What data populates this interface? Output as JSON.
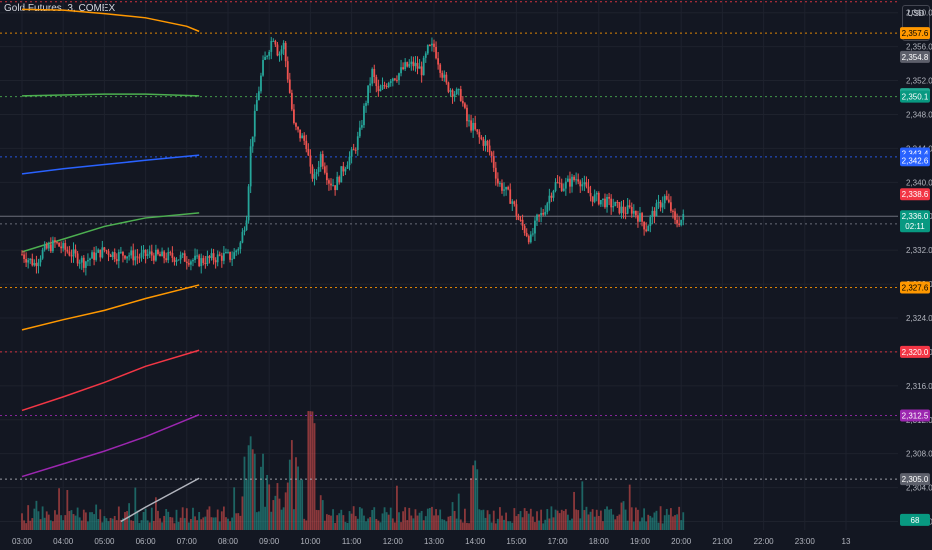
{
  "header": {
    "symbol_title": "Gold Futures, 3, COMEX",
    "currency": "USD",
    "scale_mode": "apoz"
  },
  "colors": {
    "background": "#131722",
    "grid": "#1e222d",
    "up": "#26a69a",
    "down": "#ef5350",
    "axis_text": "#b2b5be"
  },
  "chart_data": {
    "type": "candlestick",
    "x_ticks": [
      "03:00",
      "04:00",
      "05:00",
      "06:00",
      "07:00",
      "08:00",
      "09:00",
      "10:00",
      "11:00",
      "12:00",
      "13:00",
      "14:00",
      "15:00",
      "17:00",
      "18:00",
      "19:00",
      "20:00",
      "21:00",
      "22:00",
      "23:00",
      "13"
    ],
    "y_ticks": [
      2300.0,
      2304.0,
      2308.0,
      2312.0,
      2316.0,
      2320.0,
      2324.0,
      2328.0,
      2332.0,
      2336.0,
      2340.0,
      2344.0,
      2348.0,
      2352.0,
      2356.0,
      2360.0
    ],
    "ylim": [
      2299.0,
      2361.5
    ],
    "last_price": {
      "value": "2,336.0",
      "countdown": "02:11"
    },
    "price_markers": [
      {
        "label": "2,357.6",
        "value": 2357.6,
        "color": "#ff9800",
        "text_color": "#000000"
      },
      {
        "label": "2,354.8",
        "value": 2354.8,
        "color": "#5d606b",
        "text_color": "#ffffff"
      },
      {
        "label": "2,350.4",
        "value": 2350.4,
        "color": "#22ab94",
        "text_color": "#ffffff"
      },
      {
        "label": "2,350.1",
        "value": 2350.1,
        "color": "#089981",
        "text_color": "#ffffff"
      },
      {
        "label": "2,343.4",
        "value": 2343.4,
        "color": "#2962ff",
        "text_color": "#ffffff"
      },
      {
        "label": "2,342.6",
        "value": 2342.6,
        "color": "#2962ff",
        "text_color": "#ffffff"
      },
      {
        "label": "2,338.6",
        "value": 2338.6,
        "color": "#f23645",
        "text_color": "#ffffff"
      },
      {
        "label": "2,335.1",
        "value": 2335.1,
        "color": "#089981",
        "text_color": "#ffffff"
      },
      {
        "label": "2,327.6",
        "value": 2327.6,
        "color": "#ff9800",
        "text_color": "#000000"
      },
      {
        "label": "2,320.0",
        "value": 2320.0,
        "color": "#f23645",
        "text_color": "#ffffff"
      },
      {
        "label": "2,312.5",
        "value": 2312.5,
        "color": "#9c27b0",
        "text_color": "#ffffff"
      },
      {
        "label": "2,305.0",
        "value": 2305.0,
        "color": "#5d606b",
        "text_color": "#ffffff"
      },
      {
        "label": "68",
        "value": 2300.2,
        "color": "#089981",
        "text_color": "#ffffff"
      }
    ],
    "horizontal_levels": [
      {
        "value": 2357.6,
        "color": "#ff9800",
        "style": "dotted"
      },
      {
        "value": 2350.1,
        "color": "#4caf50",
        "style": "dotted"
      },
      {
        "value": 2343.0,
        "color": "#2962ff",
        "style": "dotted"
      },
      {
        "value": 2336.0,
        "color": "#787b86",
        "style": "solid"
      },
      {
        "value": 2335.1,
        "color": "#787b86",
        "style": "dotted"
      },
      {
        "value": 2327.6,
        "color": "#ff9800",
        "style": "dotted"
      },
      {
        "value": 2320.0,
        "color": "#f23645",
        "style": "dotted"
      },
      {
        "value": 2312.5,
        "color": "#9c27b0",
        "style": "dotted"
      },
      {
        "value": 2305.0,
        "color": "#b2b5be",
        "style": "dotted"
      },
      {
        "value": 2361.3,
        "color": "#f23645",
        "style": "dotted"
      }
    ],
    "series_lines": [
      {
        "color": "#ff9800",
        "points": [
          [
            0.0,
            2360.4
          ],
          [
            1.0,
            2360.3
          ],
          [
            2.0,
            2359.9
          ],
          [
            3.0,
            2359.4
          ],
          [
            4.0,
            2358.4
          ],
          [
            4.3,
            2357.8
          ]
        ]
      },
      {
        "color": "#4caf50",
        "points": [
          [
            0.0,
            2350.2
          ],
          [
            1.0,
            2350.3
          ],
          [
            2.0,
            2350.4
          ],
          [
            3.0,
            2350.4
          ],
          [
            4.3,
            2350.2
          ]
        ]
      },
      {
        "color": "#2962ff",
        "points": [
          [
            0.0,
            2341.0
          ],
          [
            1.0,
            2341.6
          ],
          [
            2.0,
            2342.1
          ],
          [
            3.0,
            2342.6
          ],
          [
            4.3,
            2343.2
          ]
        ]
      },
      {
        "color": "#4caf50",
        "points": [
          [
            0.0,
            2331.8
          ],
          [
            1.0,
            2333.3
          ],
          [
            2.0,
            2334.8
          ],
          [
            3.0,
            2335.8
          ],
          [
            4.3,
            2336.4
          ]
        ]
      },
      {
        "color": "#ff9800",
        "points": [
          [
            0.0,
            2322.6
          ],
          [
            1.0,
            2323.8
          ],
          [
            2.0,
            2324.9
          ],
          [
            3.0,
            2326.3
          ],
          [
            4.3,
            2327.9
          ]
        ]
      },
      {
        "color": "#f23645",
        "points": [
          [
            0.0,
            2313.1
          ],
          [
            1.0,
            2314.7
          ],
          [
            2.0,
            2316.4
          ],
          [
            3.0,
            2318.3
          ],
          [
            4.3,
            2320.2
          ]
        ]
      },
      {
        "color": "#9c27b0",
        "points": [
          [
            0.0,
            2305.3
          ],
          [
            1.0,
            2306.8
          ],
          [
            2.0,
            2308.3
          ],
          [
            3.0,
            2310.0
          ],
          [
            4.3,
            2312.6
          ]
        ]
      },
      {
        "color": "#b2b5be",
        "points": [
          [
            2.4,
            2300.0
          ],
          [
            3.0,
            2301.7
          ],
          [
            4.3,
            2305.1
          ]
        ]
      }
    ],
    "price_path": [
      [
        0.0,
        2331.5
      ],
      [
        0.3,
        2330.4
      ],
      [
        0.5,
        2331.8
      ],
      [
        0.8,
        2332.8
      ],
      [
        1.0,
        2332.2
      ],
      [
        1.2,
        2331.6
      ],
      [
        1.5,
        2330.6
      ],
      [
        1.7,
        2331.2
      ],
      [
        2.0,
        2332.0
      ],
      [
        2.3,
        2331.4
      ],
      [
        2.5,
        2331.6
      ],
      [
        2.8,
        2331.2
      ],
      [
        3.1,
        2331.5
      ],
      [
        3.4,
        2331.2
      ],
      [
        3.7,
        2331.2
      ],
      [
        4.0,
        2331.0
      ],
      [
        4.3,
        2330.7
      ],
      [
        4.6,
        2331.0
      ],
      [
        4.9,
        2331.3
      ],
      [
        5.1,
        2331.2
      ],
      [
        5.3,
        2332.8
      ],
      [
        5.45,
        2336.2
      ],
      [
        5.55,
        2344.0
      ],
      [
        5.7,
        2349.6
      ],
      [
        5.85,
        2353.8
      ],
      [
        6.0,
        2356.0
      ],
      [
        6.12,
        2357.5
      ],
      [
        6.22,
        2355.0
      ],
      [
        6.35,
        2356.2
      ],
      [
        6.5,
        2350.6
      ],
      [
        6.6,
        2346.6
      ],
      [
        6.75,
        2345.5
      ],
      [
        6.9,
        2344.6
      ],
      [
        7.0,
        2341.2
      ],
      [
        7.1,
        2340.4
      ],
      [
        7.25,
        2343.2
      ],
      [
        7.45,
        2340.2
      ],
      [
        7.6,
        2339.6
      ],
      [
        7.75,
        2341.2
      ],
      [
        7.9,
        2342.6
      ],
      [
        8.05,
        2343.6
      ],
      [
        8.2,
        2345.8
      ],
      [
        8.3,
        2348.6
      ],
      [
        8.5,
        2353.0
      ],
      [
        8.65,
        2350.4
      ],
      [
        8.8,
        2351.4
      ],
      [
        8.95,
        2352.4
      ],
      [
        9.1,
        2352.6
      ],
      [
        9.3,
        2353.6
      ],
      [
        9.5,
        2353.9
      ],
      [
        9.7,
        2353.2
      ],
      [
        9.85,
        2355.6
      ],
      [
        10.0,
        2356.0
      ],
      [
        10.15,
        2353.6
      ],
      [
        10.3,
        2351.4
      ],
      [
        10.5,
        2350.6
      ],
      [
        10.65,
        2350.2
      ],
      [
        10.8,
        2347.2
      ],
      [
        10.95,
        2346.4
      ],
      [
        11.1,
        2345.2
      ],
      [
        11.25,
        2344.6
      ],
      [
        11.4,
        2343.0
      ],
      [
        11.55,
        2340.0
      ],
      [
        11.7,
        2339.2
      ],
      [
        11.9,
        2337.8
      ],
      [
        12.05,
        2335.6
      ],
      [
        12.2,
        2334.4
      ],
      [
        12.35,
        2333.2
      ],
      [
        12.5,
        2335.6
      ],
      [
        12.65,
        2336.4
      ],
      [
        12.8,
        2338.4
      ],
      [
        12.95,
        2339.8
      ],
      [
        13.15,
        2339.6
      ],
      [
        13.35,
        2340.2
      ],
      [
        13.5,
        2340.6
      ],
      [
        13.65,
        2339.4
      ],
      [
        13.8,
        2338.4
      ],
      [
        14.0,
        2338.0
      ],
      [
        14.2,
        2337.6
      ],
      [
        14.4,
        2337.2
      ],
      [
        14.6,
        2336.6
      ],
      [
        14.8,
        2336.8
      ],
      [
        15.0,
        2335.8
      ],
      [
        15.15,
        2334.6
      ],
      [
        15.3,
        2336.2
      ],
      [
        15.45,
        2337.2
      ],
      [
        15.6,
        2338.2
      ],
      [
        15.75,
        2336.8
      ],
      [
        15.85,
        2335.2
      ],
      [
        16.0,
        2335.6
      ],
      [
        16.1,
        2336.0
      ]
    ],
    "price_bounds": {
      "max": 2358.0,
      "min": 2332.0
    },
    "volume": {
      "ylim": [
        0,
        12
      ],
      "bars_hint": "low baseline with spikes near 07:50-08:40 and 12:50"
    }
  }
}
